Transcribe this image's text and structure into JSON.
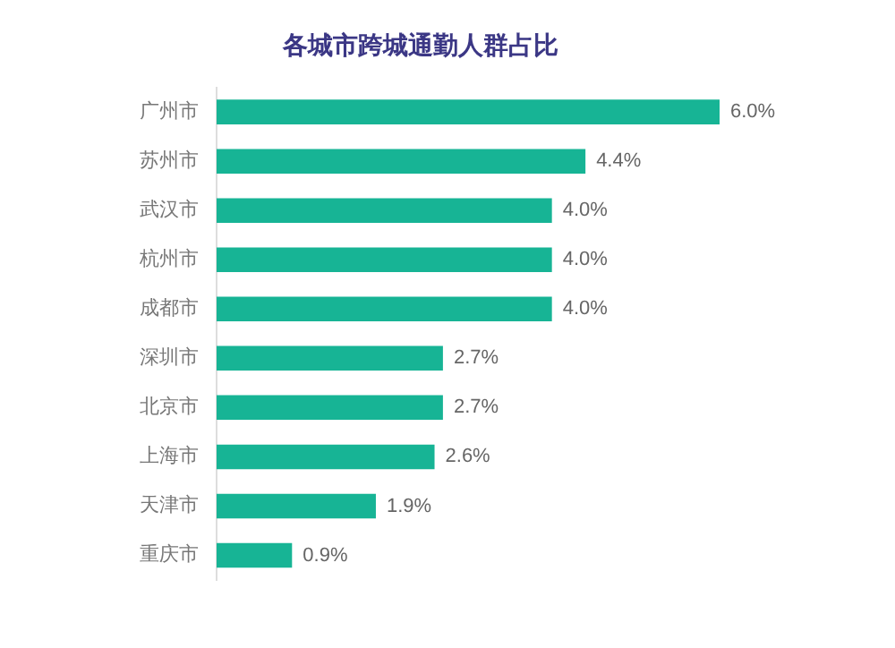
{
  "chart_data": {
    "type": "bar",
    "orientation": "horizontal",
    "title": "各城市跨城通勤人群占比",
    "categories": [
      "广州市",
      "苏州市",
      "武汉市",
      "杭州市",
      "成都市",
      "深圳市",
      "北京市",
      "上海市",
      "天津市",
      "重庆市"
    ],
    "values": [
      6.0,
      4.4,
      4.0,
      4.0,
      4.0,
      2.7,
      2.7,
      2.6,
      1.9,
      0.9
    ],
    "value_labels": [
      "6.0%",
      "4.4%",
      "4.0%",
      "4.0%",
      "4.0%",
      "2.7%",
      "2.7%",
      "2.6%",
      "1.9%",
      "0.9%"
    ],
    "color": "#17b495",
    "grid": false,
    "legend": false
  }
}
